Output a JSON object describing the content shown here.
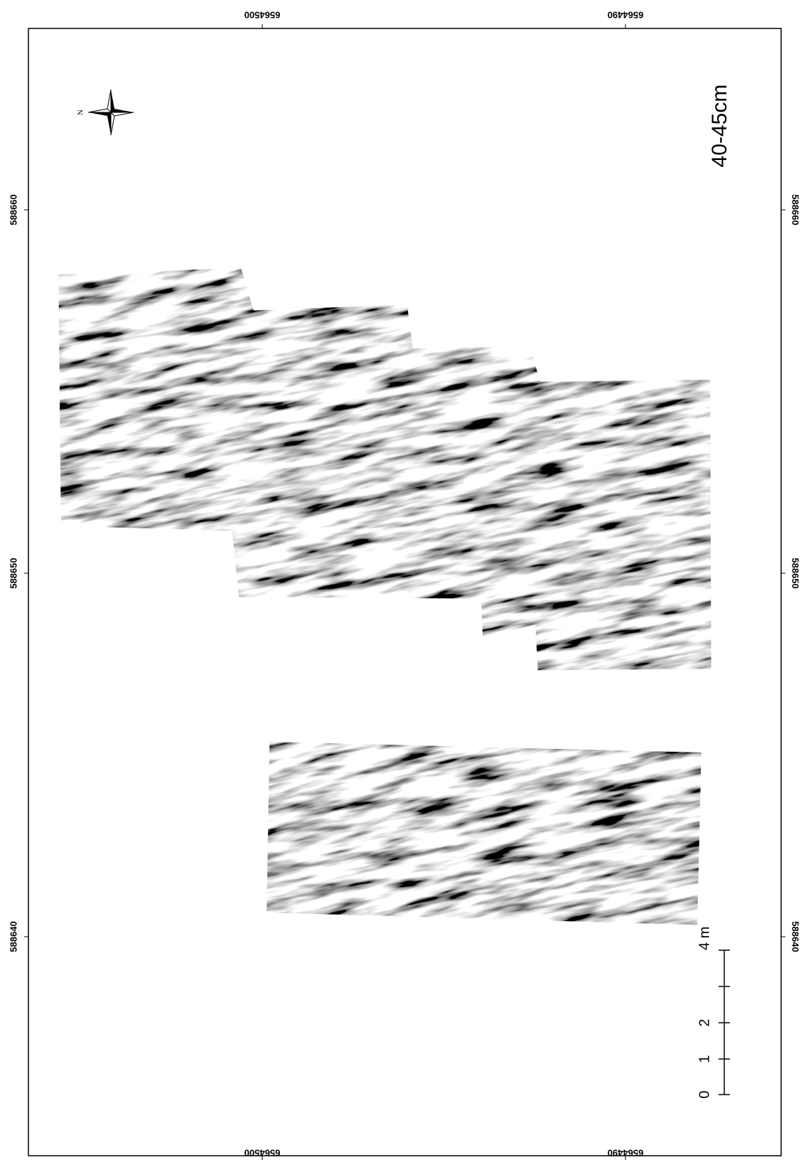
{
  "map": {
    "depth_label": "40-45cm",
    "north_label": "N",
    "top_ticks": [
      "6564500",
      "6564490"
    ],
    "bottom_ticks": [
      "6564500",
      "6564490"
    ],
    "left_ticks": [
      "588660",
      "588650",
      "588640"
    ],
    "right_ticks": [
      "588660",
      "588650",
      "588640"
    ],
    "scale_bar": {
      "labels": [
        "0",
        "1",
        "2",
        "4 m"
      ]
    }
  }
}
